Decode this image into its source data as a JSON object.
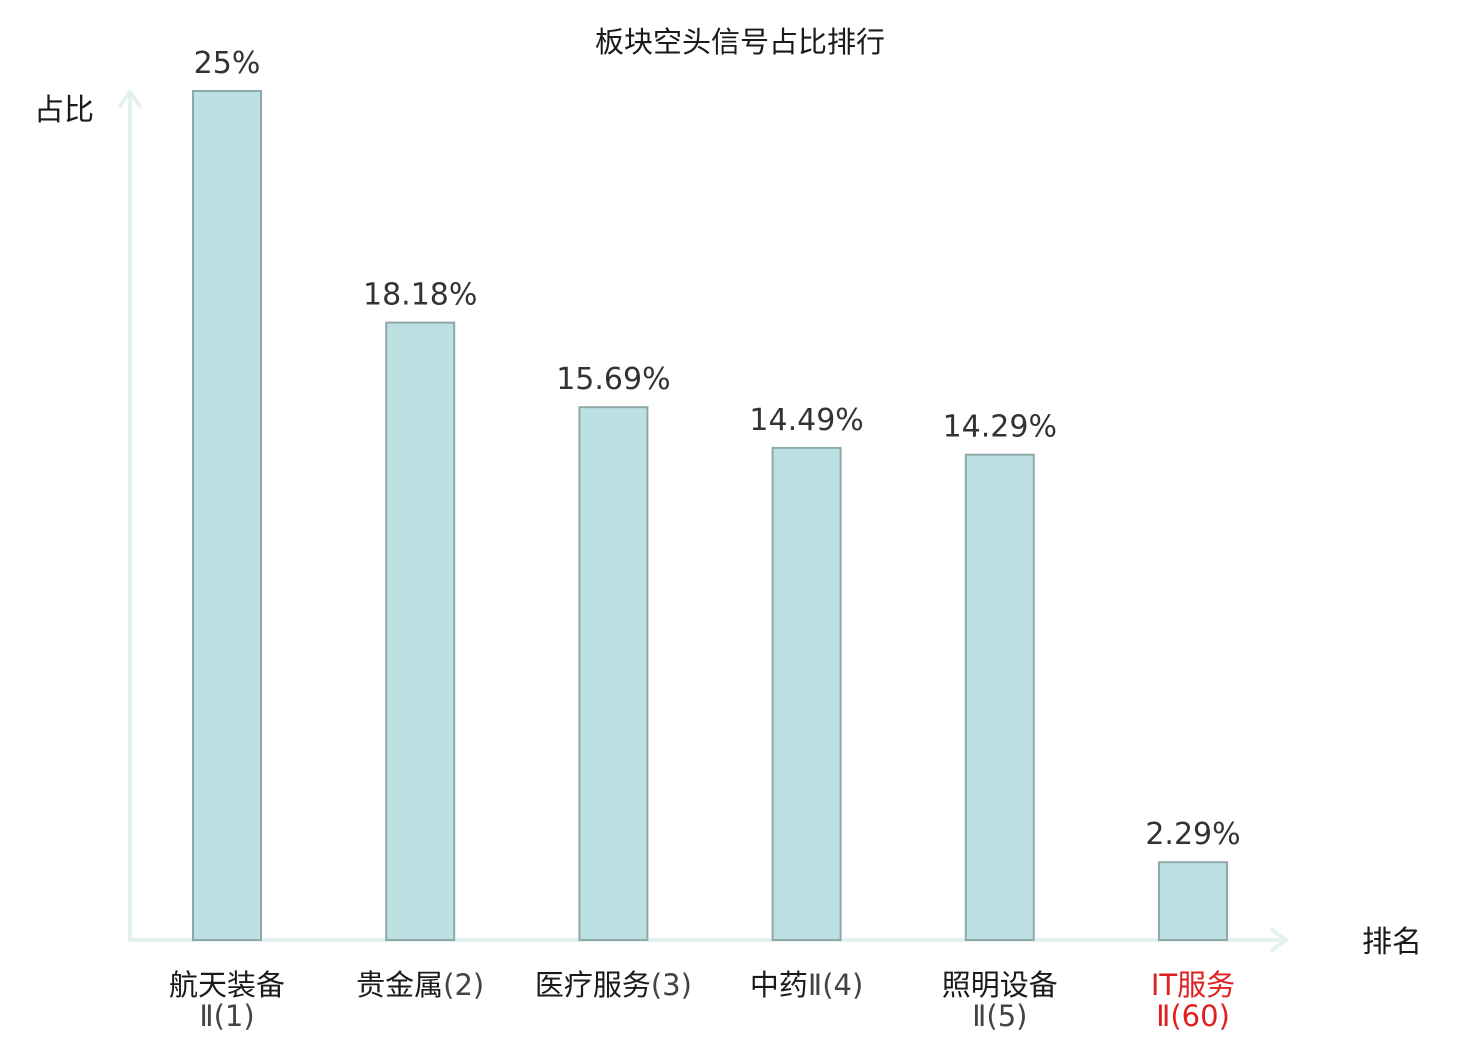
{
  "chart_data": {
    "type": "bar",
    "title": "板块空头信号占比排行",
    "ylabel": "占比",
    "xlabel": "排名",
    "ylim": [
      0,
      25
    ],
    "grid": false,
    "categories": [
      {
        "name": "航天装备",
        "suffix": "Ⅱ(1)",
        "wrap": true,
        "highlight": false
      },
      {
        "name": "贵金属",
        "suffix": "(2)",
        "wrap": false,
        "highlight": false
      },
      {
        "name": "医疗服务",
        "suffix": "(3)",
        "wrap": false,
        "highlight": false
      },
      {
        "name": "中药",
        "suffix": "Ⅱ(4)",
        "wrap": false,
        "highlight": false
      },
      {
        "name": "照明设备",
        "suffix": "Ⅱ(5)",
        "wrap": true,
        "highlight": false
      },
      {
        "name": "IT服务",
        "suffix": "Ⅱ(60)",
        "wrap": true,
        "highlight": true
      }
    ],
    "values": [
      25,
      18.18,
      15.69,
      14.49,
      14.29,
      2.29
    ],
    "value_labels": [
      "25%",
      "18.18%",
      "15.69%",
      "14.49%",
      "14.29%",
      "2.29%"
    ],
    "bar_color": "#bde0e2",
    "bar_edge_color": "#8fa8aa",
    "axis_color": "#e3f2f0",
    "highlight_color": "#e02020"
  }
}
